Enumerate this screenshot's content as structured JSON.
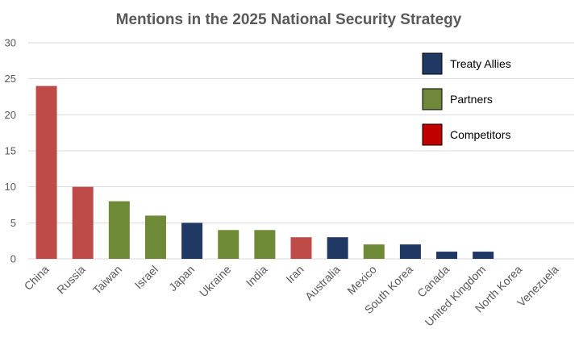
{
  "chart_data": {
    "type": "bar",
    "title": "Mentions in the 2025 National Security Strategy",
    "xlabel": "",
    "ylabel": "",
    "ylim": [
      0,
      30
    ],
    "yticks": [
      "0",
      "5",
      "10",
      "15",
      "20",
      "25",
      "30"
    ],
    "categories": [
      "China",
      "Russia",
      "Taiwan",
      "Israel",
      "Japan",
      "Ukraine",
      "India",
      "Iran",
      "Australia",
      "Mexico",
      "South Korea",
      "Canada",
      "United Kingdom",
      "North Korea",
      "Venezuela"
    ],
    "values": [
      24,
      10,
      8,
      6,
      5,
      4,
      4,
      3,
      3,
      2,
      2,
      1,
      1,
      0,
      0
    ],
    "groups": [
      "Competitors",
      "Competitors",
      "Partners",
      "Partners",
      "Treaty Allies",
      "Partners",
      "Partners",
      "Competitors",
      "Treaty Allies",
      "Partners",
      "Treaty Allies",
      "Treaty Allies",
      "Treaty Allies",
      "Competitors",
      "Competitors"
    ],
    "legend_position": "top-right",
    "legend": [
      {
        "name": "Treaty Allies",
        "color": "#203864"
      },
      {
        "name": "Partners",
        "color": "#70883a"
      },
      {
        "name": "Competitors",
        "color": "#c00000"
      }
    ],
    "bar_colors": {
      "Treaty Allies": "#203864",
      "Partners": "#6f8a36",
      "Competitors": "#be4b48"
    }
  }
}
